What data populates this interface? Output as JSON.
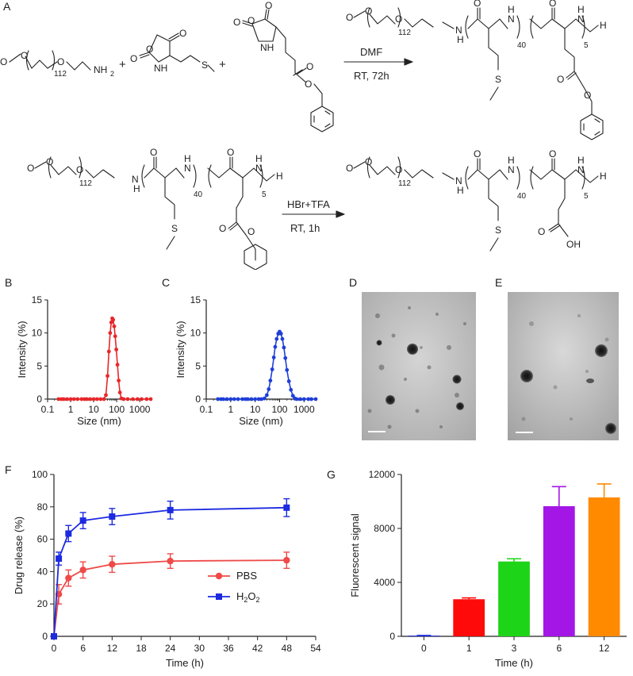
{
  "figure": {
    "panel_labels": {
      "A": "A",
      "B": "B",
      "C": "C",
      "D": "D",
      "E": "E",
      "F": "F",
      "G": "G"
    },
    "scheme": {
      "mpeg_label": "O",
      "n_peg": "112",
      "n_met": "40",
      "n_glu": "5",
      "amine": "NH",
      "amine_sub": "2",
      "nh": "NH",
      "n_h": "N",
      "h_end": "H",
      "hn": "HN",
      "s": "S",
      "o": "O",
      "oh": "OH",
      "plus": "+",
      "step1_reagent": "DMF",
      "step1_condition": "RT, 72h",
      "step2_reagent": "HBr+TFA",
      "step2_condition": "RT, 1h"
    }
  },
  "chart_data": [
    {
      "id": "B",
      "type": "line",
      "xlabel": "Size (nm)",
      "ylabel": "Intensity (%)",
      "x_scale": "log",
      "xlim": [
        0.1,
        3000
      ],
      "ylim": [
        0,
        15
      ],
      "xticks": [
        "0.1",
        "1",
        "10",
        "100",
        "1000"
      ],
      "yticks": [
        "0",
        "5",
        "10",
        "15"
      ],
      "color": "#e8272a",
      "series": [
        {
          "x": [
            0.3,
            0.4,
            0.5,
            0.7,
            1,
            1.4,
            2,
            3,
            4,
            5,
            7,
            10,
            14,
            20,
            28,
            34,
            40,
            46,
            52,
            58,
            64,
            70,
            78,
            86,
            96,
            108,
            122,
            138,
            160,
            200,
            300,
            500,
            800,
            1200,
            2000,
            3000
          ],
          "y": [
            0,
            0,
            0,
            0,
            0,
            0,
            0,
            0,
            0,
            0,
            0,
            0,
            0,
            0,
            0,
            0.6,
            3.5,
            7.2,
            10.0,
            11.6,
            12.2,
            12.0,
            11.0,
            9.5,
            7.5,
            5.2,
            2.8,
            1.0,
            0.1,
            0,
            0,
            0,
            0,
            0,
            0,
            0
          ]
        }
      ]
    },
    {
      "id": "C",
      "type": "line",
      "xlabel": "Size (nm)",
      "ylabel": "Intensity (%)",
      "x_scale": "log",
      "xlim": [
        0.1,
        3000
      ],
      "ylim": [
        0,
        15
      ],
      "xticks": [
        "0.1",
        "1",
        "10",
        "100",
        "1000"
      ],
      "yticks": [
        "0",
        "5",
        "10",
        "15"
      ],
      "color": "#1f3fd8",
      "series": [
        {
          "x": [
            0.3,
            0.4,
            0.5,
            0.7,
            1,
            1.4,
            2,
            3,
            4,
            5,
            7,
            10,
            14,
            18,
            24,
            30,
            36,
            42,
            50,
            58,
            66,
            76,
            88,
            100,
            114,
            130,
            150,
            172,
            200,
            240,
            290,
            350,
            420,
            500,
            700,
            1000,
            1500,
            2000,
            3000
          ],
          "y": [
            0,
            0,
            0,
            0,
            0,
            0,
            0,
            0,
            0,
            0,
            0,
            0,
            0,
            0,
            0.1,
            0.6,
            1.5,
            2.8,
            4.5,
            6.3,
            7.9,
            9.1,
            9.9,
            10.2,
            9.9,
            9.1,
            7.8,
            6.2,
            4.4,
            2.7,
            1.4,
            0.5,
            0.1,
            0,
            0,
            0,
            0,
            0,
            0
          ]
        }
      ]
    },
    {
      "id": "F",
      "type": "line",
      "xlabel": "Time (h)",
      "ylabel": "Drug release (%)",
      "xlim": [
        0,
        54
      ],
      "ylim": [
        0,
        100
      ],
      "xticks": [
        "0",
        "6",
        "12",
        "18",
        "24",
        "30",
        "36",
        "42",
        "48",
        "54"
      ],
      "yticks": [
        "0",
        "20",
        "40",
        "60",
        "80",
        "100"
      ],
      "legend_position": "bottom-right",
      "series": [
        {
          "name": "PBS",
          "color": "#ee4a48",
          "marker": "circle",
          "x": [
            0,
            1,
            3,
            6,
            12,
            24,
            48
          ],
          "y": [
            0,
            26,
            36,
            41,
            44.5,
            46.5,
            47
          ],
          "err": [
            0,
            6,
            5,
            5,
            5,
            4.5,
            5
          ]
        },
        {
          "name": "H",
          "name_sub": "2",
          "name_tail": "O",
          "name_sub2": "2",
          "color": "#1c2ae0",
          "marker": "square",
          "x": [
            0,
            1,
            3,
            6,
            12,
            24,
            48
          ],
          "y": [
            0,
            48,
            63.5,
            71.5,
            74,
            78,
            79.5
          ],
          "err": [
            0,
            4,
            5,
            5,
            5,
            5.5,
            5.5
          ]
        }
      ]
    },
    {
      "id": "G",
      "type": "bar",
      "xlabel": "Time (h)",
      "ylabel": "Fluorescent signal",
      "ylim": [
        0,
        12000
      ],
      "yticks": [
        "0",
        "4000",
        "8000",
        "12000"
      ],
      "categories": [
        "0",
        "1",
        "3",
        "6",
        "12"
      ],
      "values": [
        50,
        2750,
        5550,
        9650,
        10300
      ],
      "err": [
        10,
        100,
        200,
        1450,
        1000
      ],
      "colors": [
        "#1c2ae0",
        "#ff0a0a",
        "#1ed418",
        "#a316e6",
        "#ff8a00"
      ]
    }
  ]
}
